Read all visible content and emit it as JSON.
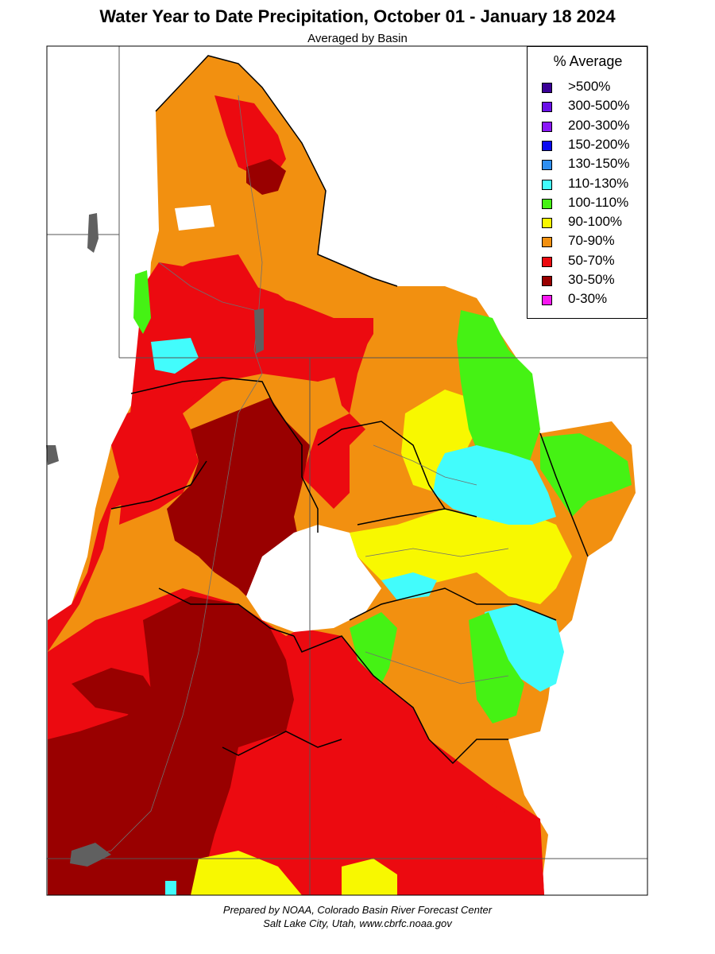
{
  "title": "Water Year to Date Precipitation, October 01  - January 18 2024",
  "subtitle": "Averaged by Basin",
  "legend": {
    "title": "% Average",
    "items": [
      {
        "label": ">500%",
        "color": "#3a0096"
      },
      {
        "label": "300-500%",
        "color": "#6a10e8"
      },
      {
        "label": "200-300%",
        "color": "#8a18f8"
      },
      {
        "label": "150-200%",
        "color": "#0a0af0"
      },
      {
        "label": "130-150%",
        "color": "#2f8ff0"
      },
      {
        "label": "110-130%",
        "color": "#42fcfc"
      },
      {
        "label": "100-110%",
        "color": "#45f214"
      },
      {
        "label": "90-100%",
        "color": "#f8f800"
      },
      {
        "label": "70-90%",
        "color": "#f29010"
      },
      {
        "label": "50-70%",
        "color": "#ec0a10"
      },
      {
        "label": "30-50%",
        "color": "#990000"
      },
      {
        "label": "0-30%",
        "color": "#f818f0"
      }
    ]
  },
  "credit": {
    "line1": "Prepared by NOAA, Colorado Basin River Forecast Center",
    "line2": "Salt Lake City, Utah, www.cbrfc.noaa.gov"
  }
}
